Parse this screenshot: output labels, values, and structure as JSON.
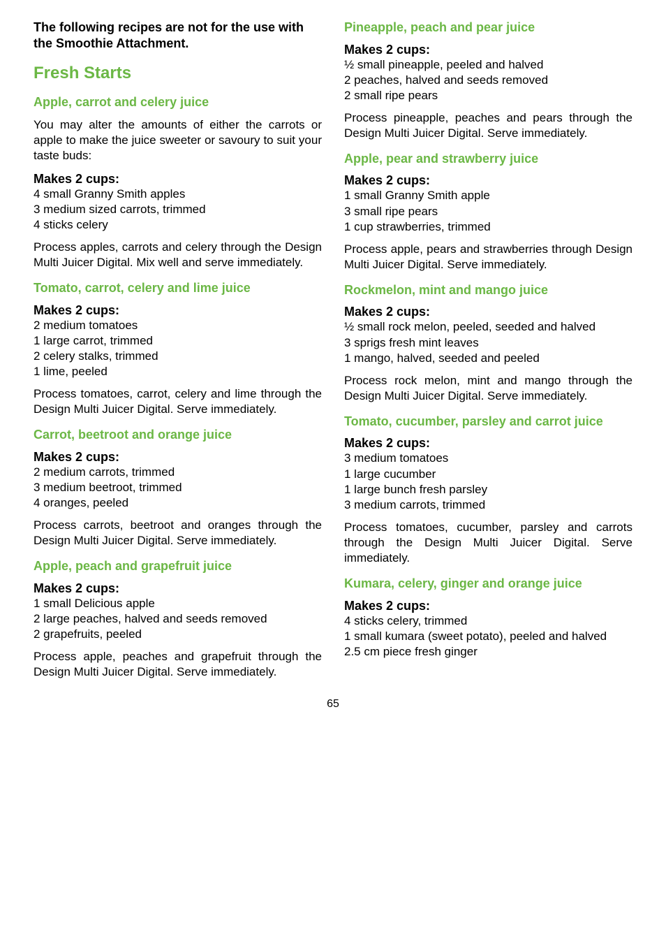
{
  "intro_note": "The following recipes are not for the use with the Smoothie Attachment.",
  "section_title": "Fresh Starts",
  "page_number": "65",
  "left": [
    {
      "title": "Apple, carrot and celery juice",
      "intro": "You may alter the amounts of either the car­rots or apple to make the juice sweeter or savoury to suit your taste buds:",
      "makes": "Makes 2 cups:",
      "ingredients": "4 small Granny Smith apples\n3 medium sized carrots, trimmed\n4 sticks celery",
      "instructions": "Process apples, carrots and celery through the Design Multi Juicer Digital. Mix well and serve immediately."
    },
    {
      "title": "Tomato, carrot, celery and lime juice",
      "makes": "Makes 2 cups:",
      "ingredients": "2 medium tomatoes\n1 large carrot, trimmed\n2 celery stalks, trimmed\n1 lime, peeled",
      "instructions": "Process tomatoes, carrot, celery and lime through the Design Multi Juicer Digital. Serve immediately."
    },
    {
      "title": "Carrot, beetroot and orange juice",
      "makes": "Makes 2 cups:",
      "ingredients": "2 medium carrots, trimmed\n3 medium beetroot, trimmed\n4 oranges, peeled",
      "instructions": "Process carrots, beetroot and oranges through the Design Multi Juicer Digital. Serve immediately."
    },
    {
      "title": "Apple, peach and grapefruit juice",
      "makes": "Makes 2 cups:",
      "ingredients": "1 small Delicious apple\n2 large peaches, halved and seeds removed\n2 grapefruits, peeled",
      "instructions": "Process apple, peaches and grapefruit through the Design Multi Juicer Digital. Serve immediately."
    }
  ],
  "right": [
    {
      "title": "Pineapple, peach and pear juice",
      "makes": "Makes 2 cups:",
      "ingredients": "½ small pineapple, peeled and halved\n2 peaches, halved and seeds removed\n2 small ripe pears",
      "instructions": "Process pineapple, peaches and pears through the Design Multi Juicer Digital. Serve immediately."
    },
    {
      "title": "Apple, pear and strawberry juice",
      "makes": "Makes 2 cups:",
      "ingredients": "1 small Granny Smith apple\n3 small ripe pears\n1 cup strawberries, trimmed",
      "instructions": "Process apple, pears and strawberries through Design Multi Juicer Digital. Serve immediately."
    },
    {
      "title": "Rockmelon, mint and mango juice",
      "makes": "Makes 2 cups:",
      "ingredients": "½ small rock melon, peeled, seeded and halved\n3 sprigs fresh mint leaves\n1 mango, halved, seeded and peeled",
      "instructions": "Process rock melon, mint and mango through the Design Multi Juicer Digital. Serve imme­diately."
    },
    {
      "title": "Tomato, cucumber, parsley and car­rot juice",
      "makes": "Makes 2 cups:",
      "ingredients": "3 medium tomatoes\n1 large cucumber\n1 large bunch fresh parsley\n3 medium carrots, trimmed",
      "instructions": "Process tomatoes, cucumber, parsley and carrots through the Design Multi Juicer Digital. Serve immediately."
    },
    {
      "title": "Kumara, celery, ginger and orange juice",
      "makes": "Makes 2 cups:",
      "ingredients": "4 sticks celery, trimmed\n1 small kumara (sweet potato), peeled and halved\n2.5 cm piece fresh ginger"
    }
  ]
}
